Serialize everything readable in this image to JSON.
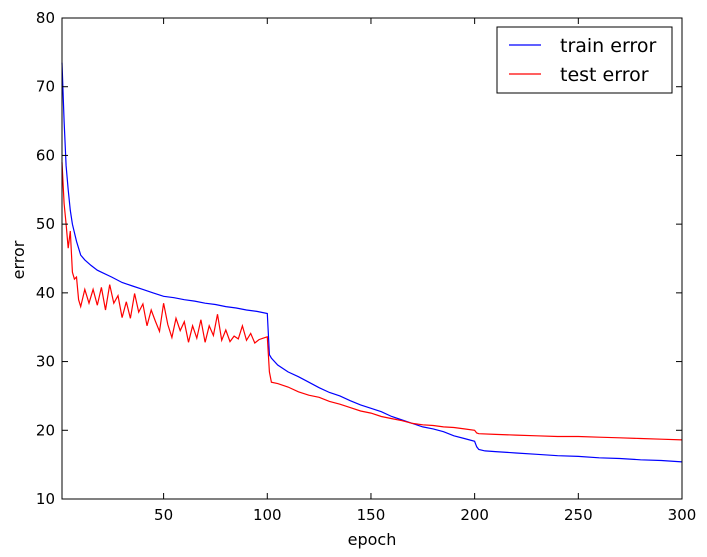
{
  "chart_data": {
    "type": "line",
    "title": "",
    "xlabel": "epoch",
    "ylabel": "error",
    "xlim": [
      1,
      300
    ],
    "ylim": [
      10,
      80
    ],
    "xticks": [
      50,
      100,
      150,
      200,
      250,
      300
    ],
    "yticks": [
      10,
      20,
      30,
      40,
      50,
      60,
      70,
      80
    ],
    "grid": false,
    "legend_position": "top-right",
    "series": [
      {
        "name": "train error",
        "color": "#0000ff",
        "x": [
          1,
          2,
          3,
          4,
          5,
          6,
          8,
          10,
          12,
          15,
          18,
          20,
          25,
          30,
          35,
          40,
          45,
          50,
          55,
          60,
          65,
          70,
          75,
          80,
          85,
          90,
          95,
          100,
          101,
          102,
          105,
          110,
          115,
          120,
          125,
          130,
          135,
          140,
          145,
          150,
          155,
          160,
          165,
          170,
          175,
          180,
          185,
          190,
          195,
          200,
          201,
          202,
          205,
          210,
          220,
          230,
          240,
          250,
          260,
          270,
          280,
          290,
          300
        ],
        "y": [
          73.5,
          65,
          58.5,
          55,
          52,
          50,
          47.5,
          45.5,
          44.8,
          44,
          43.3,
          43,
          42.3,
          41.5,
          41,
          40.5,
          40,
          39.5,
          39.3,
          39,
          38.8,
          38.5,
          38.3,
          38,
          37.8,
          37.5,
          37.3,
          37,
          31,
          30.5,
          29.5,
          28.5,
          27.8,
          27,
          26.2,
          25.5,
          25,
          24.3,
          23.7,
          23.2,
          22.7,
          22,
          21.5,
          21,
          20.5,
          20.2,
          19.8,
          19.2,
          18.8,
          18.4,
          17.6,
          17.2,
          17,
          16.9,
          16.7,
          16.5,
          16.3,
          16.2,
          16,
          15.9,
          15.7,
          15.6,
          15.4
        ]
      },
      {
        "name": "test error",
        "color": "#ff0000",
        "x": [
          1,
          2,
          3,
          4,
          5,
          6,
          7,
          8,
          9,
          10,
          12,
          14,
          16,
          18,
          20,
          22,
          24,
          26,
          28,
          30,
          32,
          34,
          36,
          38,
          40,
          42,
          44,
          46,
          48,
          50,
          52,
          54,
          56,
          58,
          60,
          62,
          64,
          66,
          68,
          70,
          72,
          74,
          76,
          78,
          80,
          82,
          84,
          86,
          88,
          90,
          92,
          94,
          96,
          98,
          100,
          101,
          102,
          105,
          110,
          115,
          120,
          125,
          130,
          135,
          140,
          145,
          150,
          155,
          160,
          165,
          170,
          175,
          180,
          185,
          190,
          195,
          200,
          201,
          202,
          210,
          220,
          230,
          240,
          250,
          260,
          270,
          280,
          290,
          300
        ],
        "y": [
          59,
          53,
          50,
          46.5,
          49,
          43,
          42,
          42.3,
          39,
          38,
          40.5,
          38.5,
          40.5,
          38.2,
          40.8,
          37.5,
          41.2,
          38.5,
          39.6,
          36.4,
          38.7,
          36.3,
          39.9,
          37.2,
          38.4,
          35.2,
          37.5,
          35.9,
          34.4,
          38.5,
          35.4,
          33.5,
          36.3,
          34.5,
          35.8,
          32.8,
          35.2,
          33.4,
          36.1,
          32.8,
          35.2,
          33.8,
          36.9,
          33.1,
          34.6,
          32.9,
          33.7,
          33.3,
          35.2,
          33.1,
          34.1,
          32.7,
          33.2,
          33.4,
          33.6,
          28.5,
          27,
          26.8,
          26.3,
          25.6,
          25.1,
          24.8,
          24.2,
          23.8,
          23.3,
          22.8,
          22.5,
          22,
          21.7,
          21.4,
          21,
          20.8,
          20.7,
          20.5,
          20.4,
          20.2,
          20,
          19.6,
          19.5,
          19.4,
          19.3,
          19.2,
          19.1,
          19.1,
          19,
          18.9,
          18.8,
          18.7,
          18.6
        ]
      }
    ]
  }
}
